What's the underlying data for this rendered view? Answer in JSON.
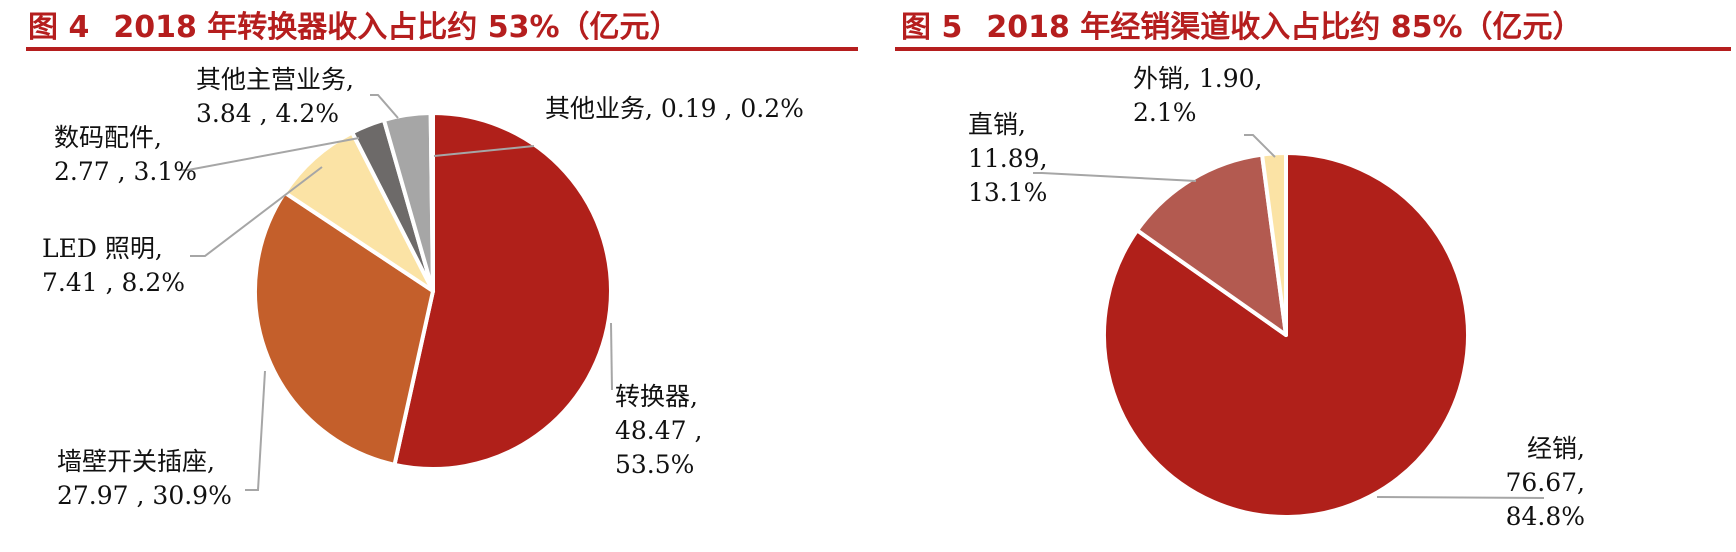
{
  "figures": [
    {
      "number": "图 4",
      "title": "2018 年转换器收入占比约 53%（亿元）"
    },
    {
      "number": "图 5",
      "title": "2018 年经销渠道收入占比约 85%（亿元）"
    }
  ],
  "chart_data": [
    {
      "type": "pie",
      "title": "2018 年转换器收入占比约 53%（亿元）",
      "slices": [
        {
          "name": "转换器",
          "value": 48.47,
          "value_text": "48.47",
          "percent_text": "53.5%",
          "color": "#b0201a",
          "label_lines": [
            "转换器,",
            "48.47 ,",
            "53.5%"
          ]
        },
        {
          "name": "墙壁开关插座",
          "value": 27.97,
          "value_text": "27.97",
          "percent_text": "30.9%",
          "color": "#c45f2b",
          "label_lines": [
            "墙壁开关插座,",
            "27.97 , 30.9%"
          ]
        },
        {
          "name": "LED 照明",
          "value": 7.41,
          "value_text": "7.41",
          "percent_text": "8.2%",
          "color": "#fbe3a5",
          "label_lines": [
            "LED 照明,",
            "7.41 , 8.2%"
          ]
        },
        {
          "name": "数码配件",
          "value": 2.77,
          "value_text": "2.77",
          "percent_text": "3.1%",
          "color": "#6d6a69",
          "label_lines": [
            "数码配件,",
            "2.77 , 3.1%"
          ]
        },
        {
          "name": "其他主营业务",
          "value": 3.84,
          "value_text": "3.84",
          "percent_text": "4.2%",
          "color": "#a6a6a6",
          "label_lines": [
            "其他主营业务,",
            "3.84 , 4.2%"
          ]
        },
        {
          "name": "其他业务",
          "value": 0.19,
          "value_text": "0.19",
          "percent_text": "0.2%",
          "color": "#d9d9d9",
          "label_lines": [
            "其他业务, 0.19 , 0.2%"
          ]
        }
      ],
      "start_angle_deg": 0,
      "direction": "clockwise"
    },
    {
      "type": "pie",
      "title": "2018 年经销渠道收入占比约 85%（亿元）",
      "slices": [
        {
          "name": "经销",
          "value": 76.67,
          "value_text": "76.67",
          "percent_text": "84.8%",
          "color": "#b0201a",
          "label_lines": [
            "经销,",
            "76.67,",
            "84.8%"
          ]
        },
        {
          "name": "直销",
          "value": 11.89,
          "value_text": "11.89",
          "percent_text": "13.1%",
          "color": "#b35a50",
          "label_lines": [
            "直销,",
            "11.89,",
            "13.1%"
          ]
        },
        {
          "name": "外销",
          "value": 1.9,
          "value_text": "1.90",
          "percent_text": "2.1%",
          "color": "#fbe3a5",
          "label_lines": [
            "外销, 1.90,",
            "2.1%"
          ]
        }
      ],
      "start_angle_deg": 0,
      "direction": "clockwise"
    }
  ]
}
